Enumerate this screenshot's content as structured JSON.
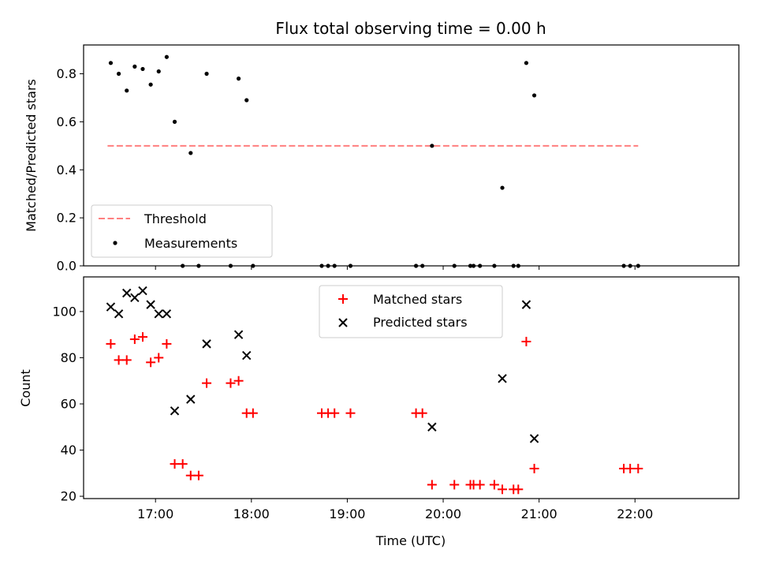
{
  "chart_data": [
    {
      "type": "scatter",
      "title": "Flux total observing time = 0.00 h",
      "xlabel": "",
      "ylabel": "Matched/Predicted stars",
      "ylim": [
        0,
        0.92
      ],
      "xlim": [
        "16:15",
        "23:05"
      ],
      "yticks": [
        "0.0",
        "0.2",
        "0.4",
        "0.6",
        "0.8"
      ],
      "legend_position": "lower-left",
      "grid": false,
      "threshold": {
        "name": "Threshold",
        "value": 0.5,
        "x_range": [
          "16:30",
          "22:02"
        ],
        "color": "#ff7f7f",
        "style": "dashed"
      },
      "series": [
        {
          "name": "Measurements",
          "color": "#000000",
          "marker": "dot",
          "points": [
            {
              "x": "16:32",
              "y": 0.845
            },
            {
              "x": "16:37",
              "y": 0.8
            },
            {
              "x": "16:42",
              "y": 0.73
            },
            {
              "x": "16:47",
              "y": 0.83
            },
            {
              "x": "16:52",
              "y": 0.82
            },
            {
              "x": "16:57",
              "y": 0.755
            },
            {
              "x": "17:02",
              "y": 0.81
            },
            {
              "x": "17:07",
              "y": 0.87
            },
            {
              "x": "17:12",
              "y": 0.6
            },
            {
              "x": "17:17",
              "y": 0.0
            },
            {
              "x": "17:22",
              "y": 0.47
            },
            {
              "x": "17:27",
              "y": 0.0
            },
            {
              "x": "17:32",
              "y": 0.8
            },
            {
              "x": "17:47",
              "y": 0.0
            },
            {
              "x": "17:52",
              "y": 0.78
            },
            {
              "x": "17:57",
              "y": 0.69
            },
            {
              "x": "18:01",
              "y": 0.0
            },
            {
              "x": "18:44",
              "y": 0.0
            },
            {
              "x": "18:48",
              "y": 0.0
            },
            {
              "x": "18:52",
              "y": 0.0
            },
            {
              "x": "19:02",
              "y": 0.0
            },
            {
              "x": "19:43",
              "y": 0.0
            },
            {
              "x": "19:47",
              "y": 0.0
            },
            {
              "x": "19:53",
              "y": 0.5
            },
            {
              "x": "20:07",
              "y": 0.0
            },
            {
              "x": "20:17",
              "y": 0.0
            },
            {
              "x": "20:19",
              "y": 0.0
            },
            {
              "x": "20:23",
              "y": 0.0
            },
            {
              "x": "20:32",
              "y": 0.0
            },
            {
              "x": "20:37",
              "y": 0.325
            },
            {
              "x": "20:44",
              "y": 0.0
            },
            {
              "x": "20:47",
              "y": 0.0
            },
            {
              "x": "20:52",
              "y": 0.845
            },
            {
              "x": "20:57",
              "y": 0.71
            },
            {
              "x": "21:53",
              "y": 0.0
            },
            {
              "x": "21:57",
              "y": 0.0
            },
            {
              "x": "22:02",
              "y": 0.0
            }
          ]
        }
      ]
    },
    {
      "type": "scatter",
      "title": "",
      "xlabel": "Time (UTC)",
      "ylabel": "Count",
      "ylim": [
        19,
        115
      ],
      "xlim": [
        "16:15",
        "23:05"
      ],
      "xticks": [
        "17:00",
        "18:00",
        "19:00",
        "20:00",
        "21:00",
        "22:00"
      ],
      "yticks": [
        "20",
        "40",
        "60",
        "80",
        "100"
      ],
      "legend_position": "upper-center",
      "grid": false,
      "series": [
        {
          "name": "Matched stars",
          "color": "#ff0000",
          "marker": "plus",
          "points": [
            {
              "x": "16:32",
              "y": 86
            },
            {
              "x": "16:37",
              "y": 79
            },
            {
              "x": "16:42",
              "y": 79
            },
            {
              "x": "16:47",
              "y": 88
            },
            {
              "x": "16:52",
              "y": 89
            },
            {
              "x": "16:57",
              "y": 78
            },
            {
              "x": "17:02",
              "y": 80
            },
            {
              "x": "17:07",
              "y": 86
            },
            {
              "x": "17:12",
              "y": 34
            },
            {
              "x": "17:17",
              "y": 34
            },
            {
              "x": "17:22",
              "y": 29
            },
            {
              "x": "17:27",
              "y": 29
            },
            {
              "x": "17:32",
              "y": 69
            },
            {
              "x": "17:47",
              "y": 69
            },
            {
              "x": "17:52",
              "y": 70
            },
            {
              "x": "17:57",
              "y": 56
            },
            {
              "x": "18:01",
              "y": 56
            },
            {
              "x": "18:44",
              "y": 56
            },
            {
              "x": "18:48",
              "y": 56
            },
            {
              "x": "18:52",
              "y": 56
            },
            {
              "x": "19:02",
              "y": 56
            },
            {
              "x": "19:43",
              "y": 56
            },
            {
              "x": "19:47",
              "y": 56
            },
            {
              "x": "19:53",
              "y": 25
            },
            {
              "x": "20:07",
              "y": 25
            },
            {
              "x": "20:17",
              "y": 25
            },
            {
              "x": "20:19",
              "y": 25
            },
            {
              "x": "20:23",
              "y": 25
            },
            {
              "x": "20:32",
              "y": 25
            },
            {
              "x": "20:37",
              "y": 23
            },
            {
              "x": "20:44",
              "y": 23
            },
            {
              "x": "20:47",
              "y": 23
            },
            {
              "x": "20:52",
              "y": 87
            },
            {
              "x": "20:57",
              "y": 32
            },
            {
              "x": "21:53",
              "y": 32
            },
            {
              "x": "21:57",
              "y": 32
            },
            {
              "x": "22:02",
              "y": 32
            }
          ]
        },
        {
          "name": "Predicted stars",
          "color": "#000000",
          "marker": "cross",
          "points": [
            {
              "x": "16:32",
              "y": 102
            },
            {
              "x": "16:37",
              "y": 99
            },
            {
              "x": "16:42",
              "y": 108
            },
            {
              "x": "16:47",
              "y": 106
            },
            {
              "x": "16:52",
              "y": 109
            },
            {
              "x": "16:57",
              "y": 103
            },
            {
              "x": "17:02",
              "y": 99
            },
            {
              "x": "17:07",
              "y": 99
            },
            {
              "x": "17:12",
              "y": 57
            },
            {
              "x": "17:22",
              "y": 62
            },
            {
              "x": "17:32",
              "y": 86
            },
            {
              "x": "17:52",
              "y": 90
            },
            {
              "x": "17:57",
              "y": 81
            },
            {
              "x": "19:53",
              "y": 50
            },
            {
              "x": "20:37",
              "y": 71
            },
            {
              "x": "20:52",
              "y": 103
            },
            {
              "x": "20:57",
              "y": 45
            }
          ]
        }
      ]
    }
  ]
}
